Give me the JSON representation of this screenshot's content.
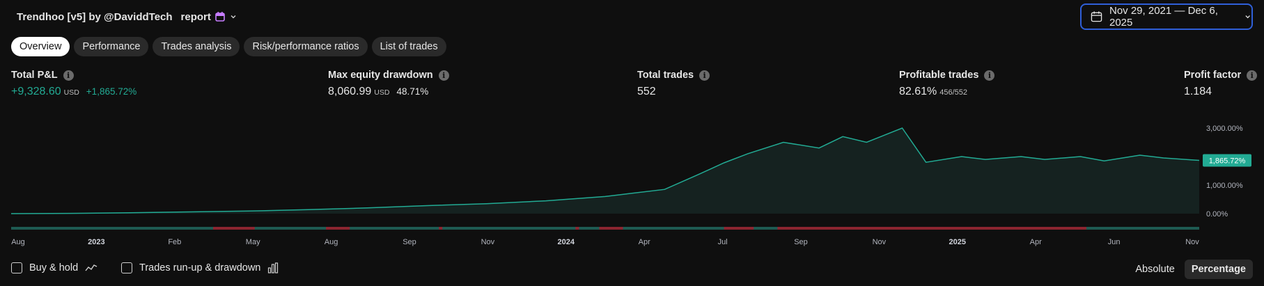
{
  "header": {
    "title_prefix_glyph": "",
    "strategy": "Trendhoo [v5] by @DaviddTech",
    "title_mid_glyph": "",
    "report": "report",
    "calendar_icon_color": "#c77dff"
  },
  "date_range": {
    "label": "Nov 29, 2021 — Dec 6, 2025"
  },
  "tabs": [
    {
      "label": "Overview",
      "active": true
    },
    {
      "label": "Performance",
      "active": false
    },
    {
      "label": "Trades analysis",
      "active": false
    },
    {
      "label": "Risk/performance ratios",
      "active": false
    },
    {
      "label": "List of trades",
      "active": false
    }
  ],
  "metrics": {
    "total_pnl": {
      "label": "Total P&L",
      "value": "+9,328.60",
      "unit": "USD",
      "pct": "+1,865.72%"
    },
    "max_drawdown": {
      "label": "Max equity drawdown",
      "value": "8,060.99",
      "unit": "USD",
      "pct": "48.71%"
    },
    "total_trades": {
      "label": "Total trades",
      "value": "552"
    },
    "profitable": {
      "label": "Profitable trades",
      "value": "82.61%",
      "ratio": "456/552"
    },
    "profit_factor": {
      "label": "Profit factor",
      "value": "1.184"
    }
  },
  "colors": {
    "accent": "#22ab94",
    "loss": "#8c2530",
    "win": "#1e5b52",
    "badge": "#22ab94"
  },
  "chart_data": {
    "type": "area",
    "series": [
      {
        "name": "",
        "x": [
          0,
          5,
          10,
          15,
          20,
          25,
          30,
          35,
          40,
          45,
          50,
          52,
          55,
          58,
          60,
          62,
          65,
          68,
          70,
          72,
          75,
          77,
          80,
          82,
          85,
          87,
          90,
          92,
          95,
          97,
          100
        ],
        "y": [
          0,
          10,
          30,
          60,
          90,
          140,
          200,
          280,
          350,
          450,
          600,
          700,
          850,
          1400,
          1780,
          2100,
          2500,
          2300,
          2700,
          2500,
          3000,
          1800,
          2000,
          1900,
          2000,
          1900,
          2000,
          1850,
          2050,
          1950,
          1865.72
        ]
      }
    ],
    "y_ticks": [
      "3,000.00%",
      "2,000.00%",
      "1,000.00%",
      "0.00%"
    ],
    "ylim": [
      0,
      3000
    ],
    "x_ticks": [
      {
        "label": "Aug",
        "bold": false
      },
      {
        "label": "2023",
        "bold": true
      },
      {
        "label": "Feb",
        "bold": false
      },
      {
        "label": "May",
        "bold": false
      },
      {
        "label": "Aug",
        "bold": false
      },
      {
        "label": "Sep",
        "bold": false
      },
      {
        "label": "Nov",
        "bold": false
      },
      {
        "label": "2024",
        "bold": true
      },
      {
        "label": "Apr",
        "bold": false
      },
      {
        "label": "Jul",
        "bold": false
      },
      {
        "label": "Sep",
        "bold": false
      },
      {
        "label": "Nov",
        "bold": false
      },
      {
        "label": "2025",
        "bold": true
      },
      {
        "label": "Apr",
        "bold": false
      },
      {
        "label": "Jun",
        "bold": false
      },
      {
        "label": "Nov",
        "bold": false
      }
    ],
    "last_value_label": "1,865.72%",
    "grid": false
  },
  "controls": {
    "buy_hold": "Buy & hold",
    "runup": "Trades run-up & drawdown",
    "absolute": "Absolute",
    "percentage": "Percentage"
  }
}
